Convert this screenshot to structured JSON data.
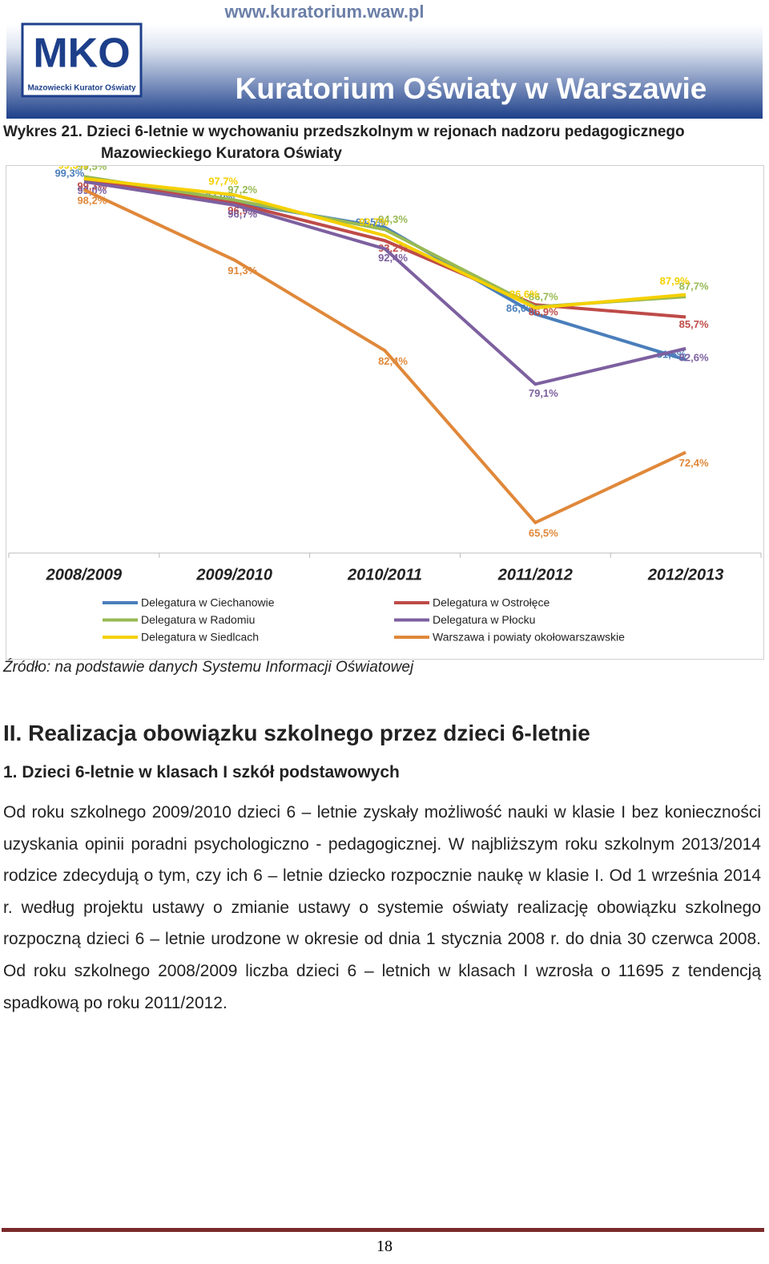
{
  "header": {
    "url": "www.kuratorium.waw.pl",
    "logo": "MKO",
    "logo_caption": "Mazowiecki Kurator Oświaty",
    "title": "Kuratorium Oświaty w Warszawie"
  },
  "caption": {
    "line1": "Wykres 21. Dzieci 6-letnie w wychowaniu przedszkolnym w rejonach nadzoru pedagogicznego",
    "line2": "Mazowieckiego Kuratora Oświaty"
  },
  "chart_data": {
    "type": "line",
    "categories": [
      "2008/2009",
      "2009/2010",
      "2010/2011",
      "2011/2012",
      "2012/2013"
    ],
    "ylim": [
      64,
      100
    ],
    "series": [
      {
        "name": "Delegatura w Ciechanowie",
        "color": "#4a7ebb",
        "values": [
          99.3,
          97.0,
          94.5,
          86.0,
          81.5
        ],
        "value_labels": [
          "99,3%",
          "97,0%",
          "94,5%",
          "86,0%",
          "81,5%"
        ]
      },
      {
        "name": "Delegatura w Ostrołęce",
        "color": "#be4b48",
        "values": [
          99.3,
          96.9,
          93.2,
          86.9,
          85.7
        ],
        "value_labels": [
          "99,3%",
          "96,9%",
          "93,2%",
          "86,9%",
          "85,7%"
        ]
      },
      {
        "name": "Delegatura w Radomiu",
        "color": "#98b954",
        "values": [
          99.5,
          97.2,
          94.3,
          86.7,
          87.7
        ],
        "value_labels": [
          "99,5%",
          "97,2%",
          "94,3%",
          "86,7%",
          "87,7%"
        ]
      },
      {
        "name": "Delegatura w Płocku",
        "color": "#7d60a0",
        "values": [
          99.0,
          96.7,
          92.4,
          79.1,
          82.6
        ],
        "value_labels": [
          "99,0%",
          "96,7%",
          "92,4%",
          "79,1%",
          "82,6%"
        ]
      },
      {
        "name": "Delegatura w Siedlcach",
        "color": "#f5d000",
        "values": [
          99.3,
          97.7,
          93.7,
          86.6,
          87.9
        ],
        "value_labels": [
          "99,3%",
          "97,7%",
          "93,7%",
          "86,6%",
          "87,9%"
        ]
      },
      {
        "name": "Warszawa i powiaty okołowarszawskie",
        "color": "#e0883a",
        "values": [
          98.2,
          91.3,
          82.4,
          65.5,
          72.4
        ],
        "value_labels": [
          "98,2%",
          "91,3%",
          "82,4%",
          "65,5%",
          "72,4%"
        ]
      }
    ]
  },
  "source": "Źródło: na podstawie danych Systemu Informacji Oświatowej",
  "heading": "II. Realizacja obowiązku szkolnego przez dzieci 6-letnie",
  "subheading": "1.  Dzieci 6-letnie w klasach I szkół podstawowych",
  "paragraph": "Od roku szkolnego 2009/2010 dzieci 6 – letnie zyskały możliwość nauki w klasie I bez konieczności uzyskania opinii poradni psychologiczno - pedagogicznej. W najbliższym roku szkolnym 2013/2014 rodzice zdecydują o tym, czy ich 6 – letnie dziecko rozpocznie naukę w klasie I. Od 1 września 2014 r. według projektu ustawy o zmianie ustawy o systemie oświaty realizację obowiązku szkolnego rozpoczną dzieci 6 – letnie urodzone w okresie od dnia 1 stycznia 2008 r. do dnia 30 czerwca 2008. Od roku szkolnego 2008/2009 liczba dzieci 6 – letnich w klasach I wzrosła o 11695 z tendencją spadkową po roku 2011/2012.",
  "page_number": "18"
}
